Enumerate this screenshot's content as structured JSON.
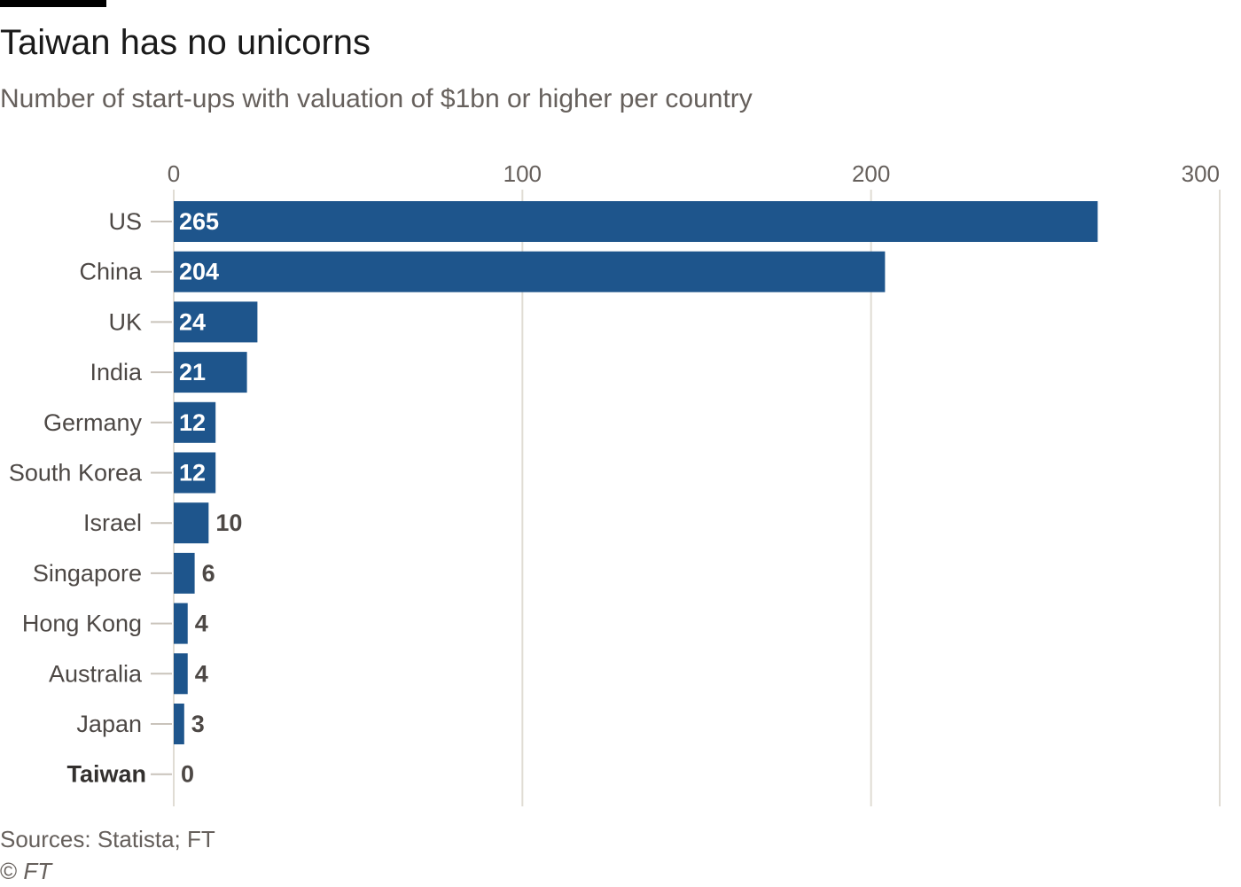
{
  "header": {
    "title": "Taiwan has no unicorns",
    "subtitle": "Number of start-ups with valuation of $1bn or higher per country"
  },
  "footer": {
    "source": "Sources: Statista; FT",
    "copyright_symbol": "©",
    "copyright_owner": "FT"
  },
  "colors": {
    "bar": "#1e558c",
    "grid": "#e0dcd4",
    "label_text": "#4d4845",
    "value_inside": "#ffffff",
    "value_outside": "#4d4845"
  },
  "chart_data": {
    "type": "bar",
    "orientation": "horizontal",
    "categories": [
      "US",
      "China",
      "UK",
      "India",
      "Germany",
      "South Korea",
      "Israel",
      "Singapore",
      "Hong Kong",
      "Australia",
      "Japan",
      "Taiwan"
    ],
    "values": [
      265,
      204,
      24,
      21,
      12,
      12,
      10,
      6,
      4,
      4,
      3,
      0
    ],
    "highlighted_category": "Taiwan",
    "xlim": [
      0,
      300
    ],
    "xticks": [
      0,
      100,
      200,
      300
    ],
    "xtick_labels": [
      "0",
      "100",
      "200",
      "300"
    ],
    "x_axis_position": "top",
    "grid": true,
    "title": "Taiwan has no unicorns",
    "subtitle": "Number of start-ups with valuation of $1bn or higher per country",
    "xlabel": "",
    "ylabel": ""
  }
}
